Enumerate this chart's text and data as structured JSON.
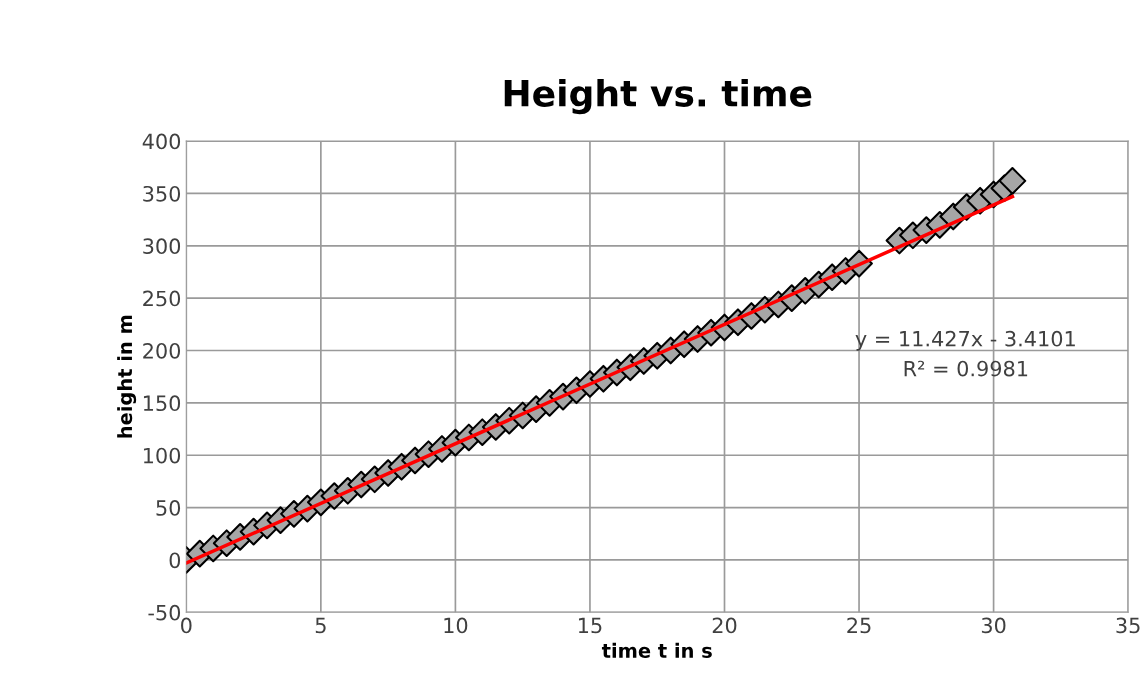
{
  "chart_data": {
    "type": "scatter",
    "title": "Height vs. time",
    "xlabel": "time t in s",
    "ylabel": "height in m",
    "xlim": [
      0,
      35
    ],
    "xticks": [
      0,
      5,
      10,
      15,
      20,
      25,
      30,
      35
    ],
    "ylim": [
      -50,
      400
    ],
    "yticks": [
      -50,
      0,
      50,
      100,
      150,
      200,
      250,
      300,
      350,
      400
    ],
    "grid": true,
    "marker": "diamond",
    "series": [
      {
        "color": "#a6a6a6",
        "x": [
          0,
          0.5,
          1,
          1.5,
          2,
          2.5,
          3,
          3.5,
          4,
          4.5,
          5,
          5.5,
          6,
          6.5,
          7,
          7.5,
          8,
          8.5,
          9,
          9.5,
          10,
          10.5,
          11,
          11.5,
          12,
          12.5,
          13,
          13.5,
          14,
          14.5,
          15,
          15.5,
          16,
          16.5,
          17,
          17.5,
          18,
          18.5,
          19,
          19.5,
          20,
          20.5,
          21,
          21.5,
          22,
          22.5,
          23,
          23.5,
          24,
          24.5,
          25,
          26.5,
          27,
          27.5,
          28,
          28.5,
          29,
          29.5,
          30,
          30.4,
          30.7
        ],
        "values": [
          0,
          6,
          11,
          16,
          22,
          27,
          33,
          38,
          44,
          49,
          55,
          61,
          66,
          72,
          77,
          83,
          89,
          95,
          101,
          106,
          112,
          117,
          122,
          127,
          133,
          138,
          144,
          150,
          156,
          162,
          168,
          173,
          179,
          184,
          190,
          195,
          200,
          206,
          211,
          217,
          222,
          227,
          233,
          239,
          244,
          250,
          257,
          263,
          270,
          276,
          283,
          305,
          310,
          315,
          320,
          328,
          337,
          343,
          349,
          355,
          362
        ]
      },
      {
        "type": "line",
        "color": "#ff0000",
        "marker": "none",
        "x": [
          0,
          30.7
        ],
        "values": [
          -3,
          347
        ]
      }
    ],
    "annotations": [
      "y = 11.427x - 3.4101",
      "R² = 0.9981"
    ]
  }
}
